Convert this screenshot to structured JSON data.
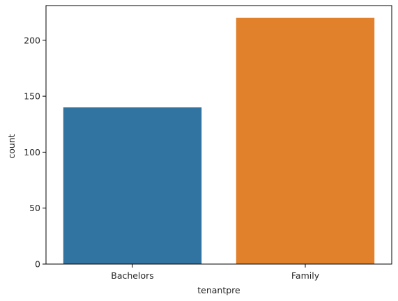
{
  "chart_data": {
    "type": "bar",
    "title": "",
    "xlabel": "tenantpre",
    "ylabel": "count",
    "categories": [
      "Bachelors",
      "Family"
    ],
    "values": [
      140,
      220
    ],
    "colors": [
      "#3274a1",
      "#e1812c"
    ],
    "ylim": [
      0,
      231
    ],
    "yticks": [
      0,
      50,
      100,
      150,
      200
    ],
    "grid": false,
    "legend": "none"
  }
}
